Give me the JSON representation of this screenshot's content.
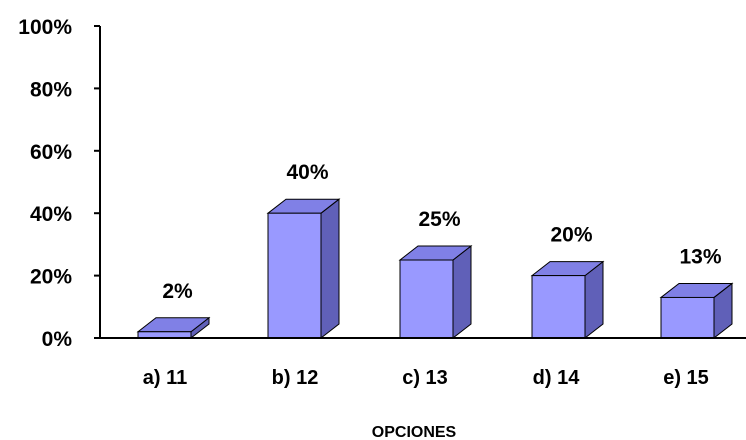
{
  "chart_data": {
    "type": "bar",
    "style": "3d-column",
    "categories": [
      "a) 11",
      "b) 12",
      "c) 13",
      "d) 14",
      "e) 15"
    ],
    "values": [
      2,
      40,
      25,
      20,
      13
    ],
    "data_labels": [
      "2%",
      "40%",
      "25%",
      "20%",
      "13%"
    ],
    "title": "",
    "xlabel": "OPCIONES",
    "ylabel": "",
    "ylim": [
      0,
      100
    ],
    "yticks": [
      0,
      20,
      40,
      60,
      80,
      100
    ],
    "ytick_labels": [
      "0%",
      "20%",
      "40%",
      "60%",
      "80%",
      "100%"
    ],
    "grid": false,
    "legend": "none",
    "colors": {
      "front": "#9999ff",
      "top": "#8080e6",
      "side": "#6060b8",
      "outline": "#000000"
    }
  }
}
